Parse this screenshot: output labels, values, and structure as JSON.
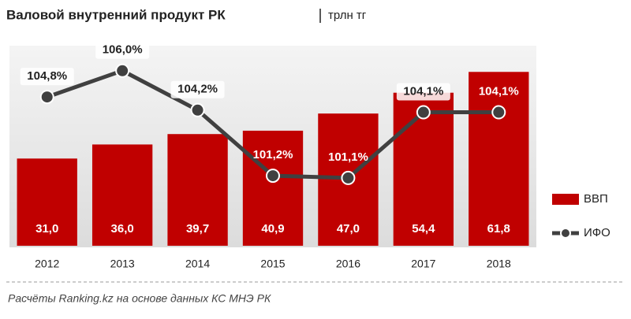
{
  "chart_data": {
    "type": "combo",
    "title": "Валовой внутренний продукт РК",
    "subtitle": "трлн тг",
    "note": "Расчёты Ranking.kz на основе данных КС МНЭ РК",
    "categories": [
      "2012",
      "2013",
      "2014",
      "2015",
      "2016",
      "2017",
      "2018"
    ],
    "series": [
      {
        "name": "ВВП",
        "type": "bar",
        "color": "#c00000",
        "values": [
          31.0,
          36.0,
          39.7,
          40.9,
          47.0,
          54.4,
          61.8
        ],
        "value_labels": [
          "31,0",
          "36,0",
          "39,7",
          "40,9",
          "47,0",
          "54,4",
          "61,8"
        ]
      },
      {
        "name": "ИФО",
        "type": "line",
        "axis": "y2",
        "color": "#404040",
        "values": [
          104.8,
          106.0,
          104.2,
          101.2,
          101.1,
          104.1,
          104.1
        ],
        "value_labels": [
          "104,8%",
          "106,0%",
          "104,2%",
          "101,2%",
          "101,1%",
          "104,1%",
          "104,1%"
        ]
      }
    ],
    "ylim": [
      0,
      70
    ],
    "y2lim": [
      98,
      107
    ]
  }
}
